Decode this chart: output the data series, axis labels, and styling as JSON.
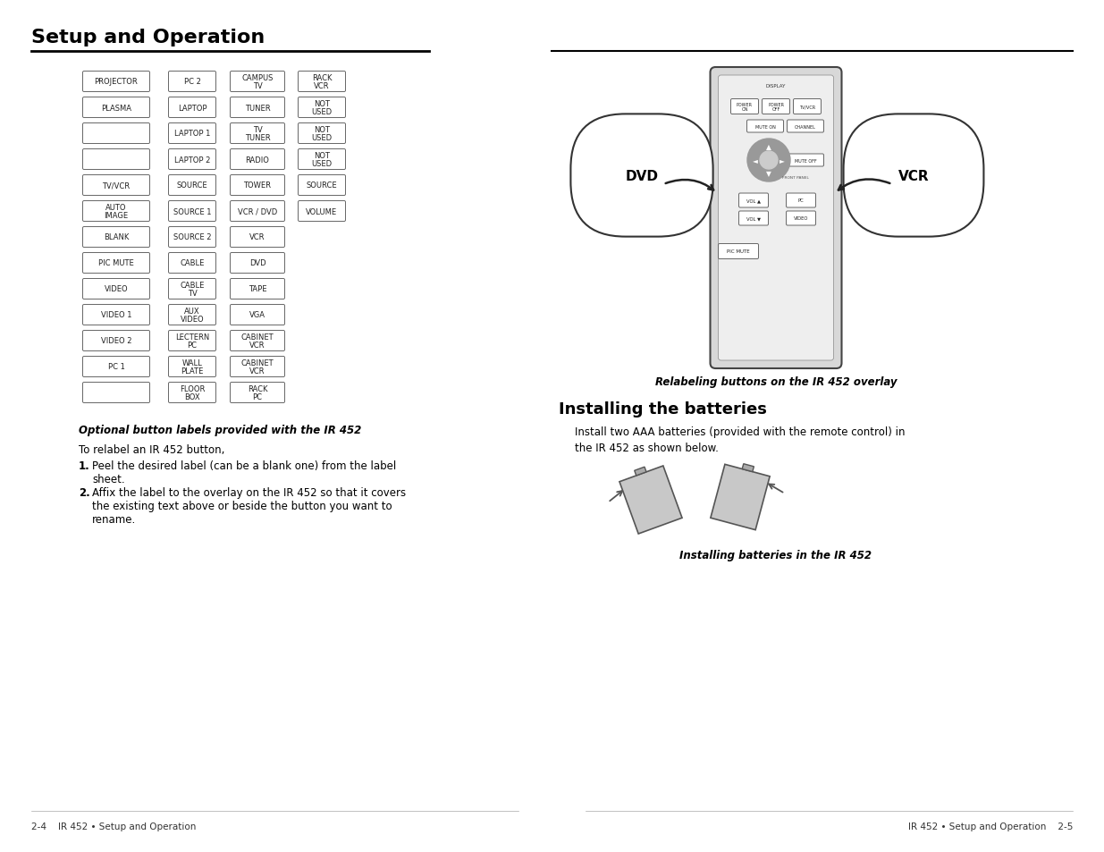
{
  "page_bg": "#ffffff",
  "title": "Setup and Operation",
  "title_fontsize": 16,
  "header_line_color": "#000000",
  "button_table": {
    "col1": [
      "PROJECTOR",
      "PLASMA",
      "",
      "",
      "TV/VCR",
      "AUTO\nIMAGE",
      "BLANK",
      "PIC MUTE",
      "VIDEO",
      "VIDEO 1",
      "VIDEO 2",
      "PC 1",
      ""
    ],
    "col2": [
      "PC 2",
      "LAPTOP",
      "LAPTOP 1",
      "LAPTOP 2",
      "SOURCE",
      "SOURCE 1",
      "SOURCE 2",
      "CABLE",
      "CABLE\nTV",
      "AUX\nVIDEO",
      "LECTERN\nPC",
      "WALL\nPLATE",
      "FLOOR\nBOX"
    ],
    "col3": [
      "CAMPUS\nTV",
      "TUNER",
      "TV\nTUNER",
      "RADIO",
      "TOWER",
      "VCR / DVD",
      "VCR",
      "DVD",
      "TAPE",
      "VGA",
      "CABINET\nVCR",
      "CABINET\nVCR",
      "RACK\nPC"
    ],
    "col4": [
      "RACK\nVCR",
      "NOT\nUSED",
      "NOT\nUSED",
      "NOT\nUSED",
      "SOURCE",
      "VOLUME",
      "",
      "",
      "",
      "",
      "",
      "",
      ""
    ]
  },
  "caption1": "Optional button labels provided with the IR 452",
  "para1": "To relabel an IR 452 button,",
  "step1_num": "1.",
  "step1": "Peel the desired label (can be a blank one) from the label\nsheet.",
  "step2_num": "2.",
  "step2": "Affix the label to the overlay on the IR 452 so that it covers\nthe existing text above or beside the button you want to\nrename.",
  "right_caption": "Relabeling buttons on the IR 452 overlay",
  "section2_title": "Installing the batteries",
  "section2_text": "Install two AAA batteries (provided with the remote control) in\nthe IR 452 as shown below.",
  "caption2": "Installing batteries in the IR 452",
  "footer_left": "2-4    IR 452 • Setup and Operation",
  "footer_right": "IR 452 • Setup and Operation    2-5"
}
